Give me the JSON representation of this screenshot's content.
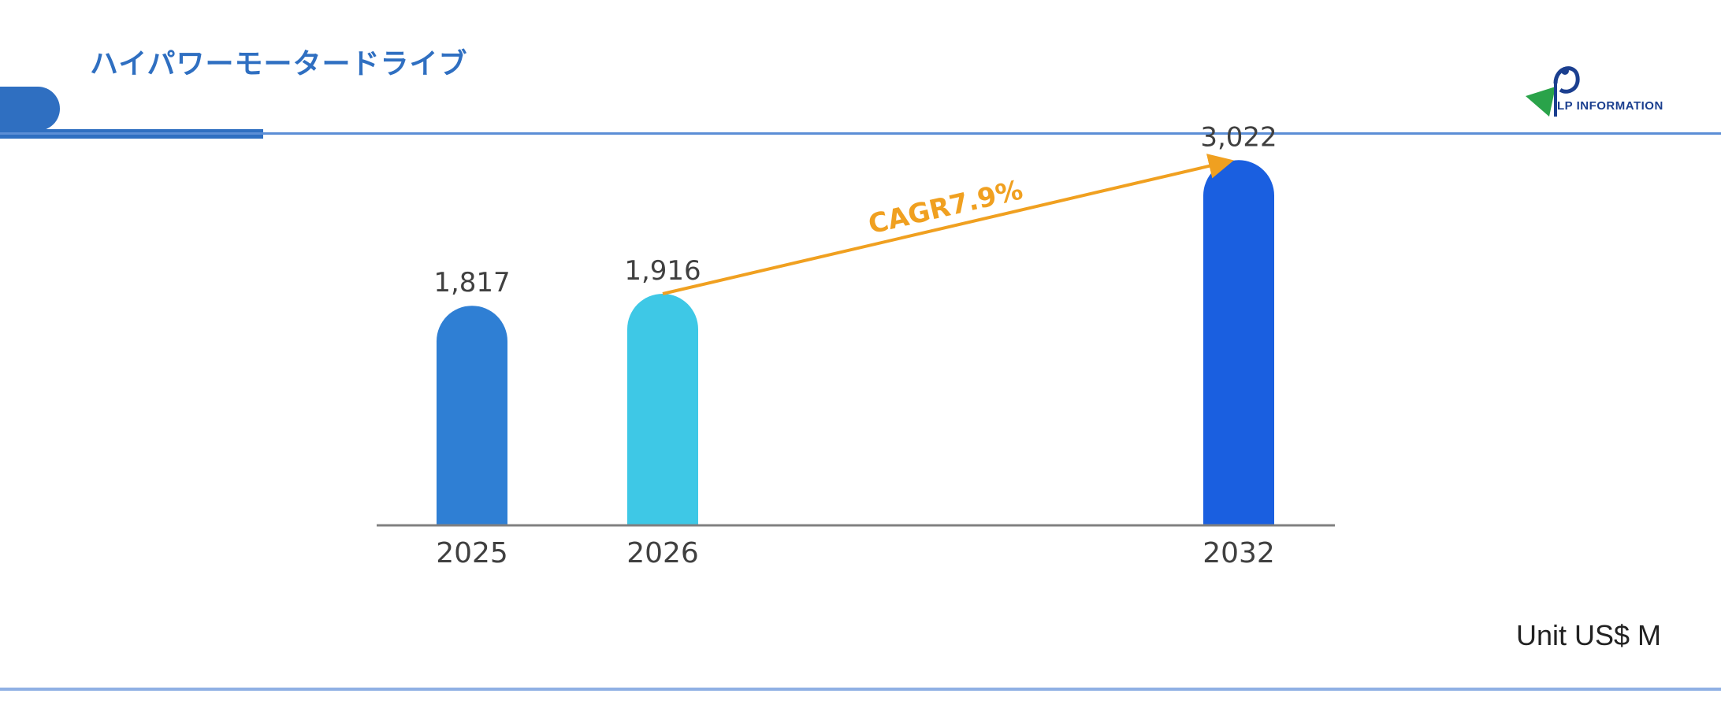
{
  "header": {
    "title": "ハイパワーモータードライブ"
  },
  "logo": {
    "text": "LP INFORMATION"
  },
  "unit": "Unit US$ M",
  "colors": {
    "brand": "#2f6fc1",
    "arrow": "#f0a020",
    "axis": "#808080"
  },
  "chart_data": {
    "type": "bar",
    "categories": [
      "2025",
      "2026",
      "2032"
    ],
    "values": [
      1817,
      1916,
      3022
    ],
    "value_labels": [
      "1,817",
      "1,916",
      "3,022"
    ],
    "bar_colors": [
      "#2f7fd4",
      "#3ec8e6",
      "#1a5fe0"
    ],
    "annotation": {
      "text": "CAGR7.9%",
      "from": "2026",
      "to": "2032"
    },
    "title": "",
    "xlabel": "",
    "ylabel": "",
    "grid": false,
    "legend": false
  }
}
